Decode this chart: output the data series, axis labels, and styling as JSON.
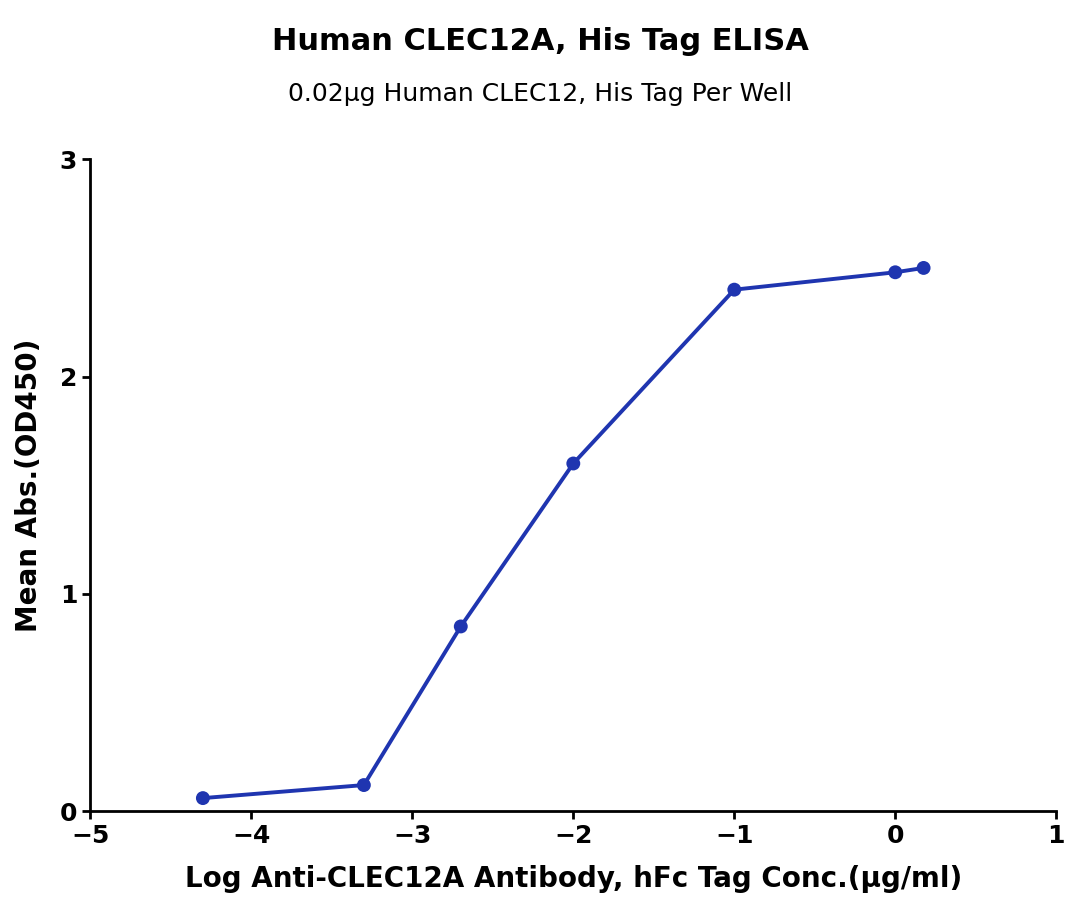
{
  "title": "Human CLEC12A, His Tag ELISA",
  "subtitle": "0.02μg Human CLEC12, His Tag Per Well",
  "xlabel": "Log Anti-CLEC12A Antibody, hFc Tag Conc.(μg/ml)",
  "ylabel": "Mean Abs.(OD450)",
  "xlim": [
    -5,
    1
  ],
  "ylim": [
    0,
    3
  ],
  "xticks": [
    -5,
    -4,
    -3,
    -2,
    -1,
    0,
    1
  ],
  "yticks": [
    0,
    1,
    2,
    3
  ],
  "data_x": [
    -4.301,
    -3.301,
    -2.699,
    -2.0,
    -1.0,
    0.0,
    0.176
  ],
  "data_y": [
    0.06,
    0.12,
    0.85,
    1.6,
    2.4,
    2.48,
    2.5
  ],
  "line_color": "#1f35b0",
  "marker_color": "#1f35b0",
  "marker_size": 10,
  "line_width": 2.8,
  "title_fontsize": 22,
  "subtitle_fontsize": 18,
  "label_fontsize": 20,
  "tick_fontsize": 18,
  "title_fontweight": "bold",
  "subtitle_fontweight": "normal",
  "label_fontweight": "bold",
  "tick_fontweight": "bold",
  "background_color": "#ffffff",
  "spine_linewidth": 2.0
}
